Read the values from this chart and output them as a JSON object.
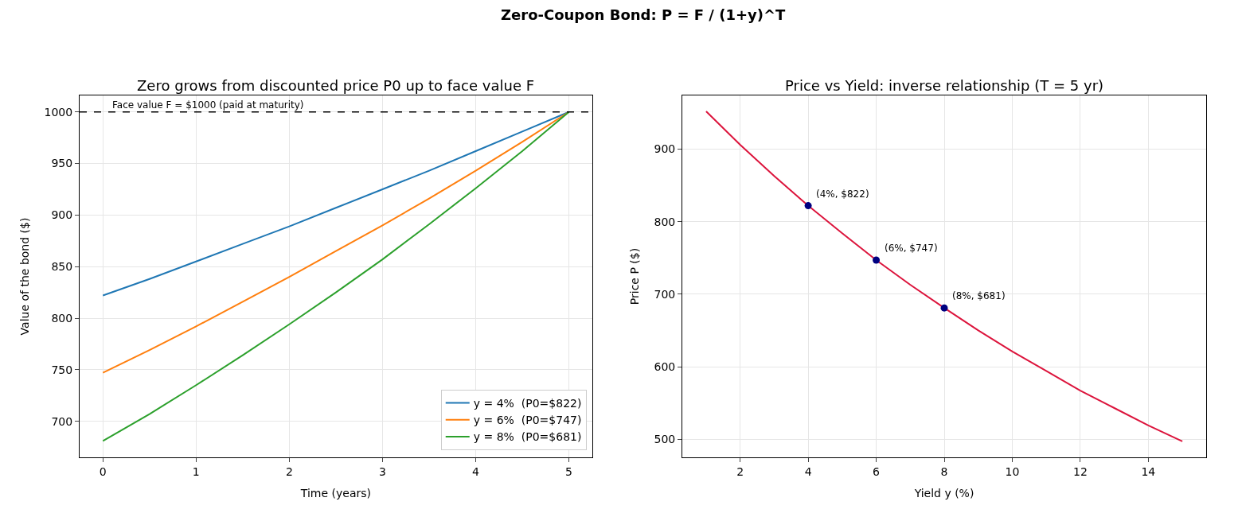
{
  "chart_data": [
    {
      "type": "line",
      "title": "Zero grows from discounted price P0 up to face value F",
      "xlabel": "Time (years)",
      "ylabel": "Value of the bond ($)",
      "x": [
        0,
        0.5,
        1,
        1.5,
        2,
        2.5,
        3,
        3.5,
        4,
        4.5,
        5
      ],
      "series": [
        {
          "name": "y = 4%  (P0=$822)",
          "color": "#1f77b4",
          "values": [
            822,
            838,
            855,
            872,
            889,
            907,
            925,
            943,
            962,
            981,
            1000
          ]
        },
        {
          "name": "y = 6%  (P0=$747)",
          "color": "#ff7f0e",
          "values": [
            747,
            769,
            792,
            816,
            840,
            865,
            890,
            916,
            943,
            971,
            1000
          ]
        },
        {
          "name": "y = 8%  (P0=$681)",
          "color": "#2ca02c",
          "values": [
            681,
            707,
            735,
            764,
            794,
            825,
            857,
            891,
            926,
            962,
            1000
          ]
        }
      ],
      "annotations": [
        "Zero-Coupon Bond: P = F / (1+y)^T"
      ],
      "xlim": [
        -0.25,
        5.25
      ],
      "xticks": [
        0,
        1,
        2,
        3,
        4,
        5
      ],
      "ylim": [
        665,
        1016
      ],
      "yticks": [
        700,
        750,
        800,
        850,
        900,
        950,
        1000
      ],
      "ref_lines": [
        {
          "axis": "y",
          "value": 1000,
          "label": "Face value F = $1000 (paid at maturity)",
          "color": "#000000",
          "line_style": "dashed"
        }
      ],
      "grid": true,
      "legend": "bottom right",
      "marker": "none",
      "line_style": "solid"
    },
    {
      "type": "line",
      "title": "Price vs Yield: inverse relationship (T = 5 yr)",
      "xlabel": "Yield y (%)",
      "ylabel": "Price P ($)",
      "series": [
        {
          "color": "#dc143c",
          "x": [
            1,
            2,
            3,
            4,
            5,
            6,
            7,
            8,
            9,
            10,
            11,
            12,
            13,
            14,
            15
          ],
          "values": [
            952,
            906,
            863,
            822,
            784,
            747,
            713,
            681,
            650,
            621,
            594,
            567,
            543,
            519,
            497
          ]
        },
        {
          "type": "scatter",
          "color": "#000080",
          "marker": "circle",
          "x": [
            4,
            6,
            8
          ],
          "values": [
            822,
            747,
            681
          ]
        }
      ],
      "annotations": [
        {
          "text": "(4%, $822)",
          "x": 4,
          "y": 822
        },
        {
          "text": "(6%, $747)",
          "x": 6,
          "y": 747
        },
        {
          "text": "(8%, $681)",
          "x": 8,
          "y": 681
        }
      ],
      "xlim": [
        0.3,
        15.7
      ],
      "xticks": [
        2,
        4,
        6,
        8,
        10,
        12,
        14
      ],
      "ylim": [
        475,
        974
      ],
      "yticks": [
        500,
        600,
        700,
        800,
        900
      ],
      "grid": true,
      "marker": "none",
      "line_style": "solid"
    }
  ]
}
